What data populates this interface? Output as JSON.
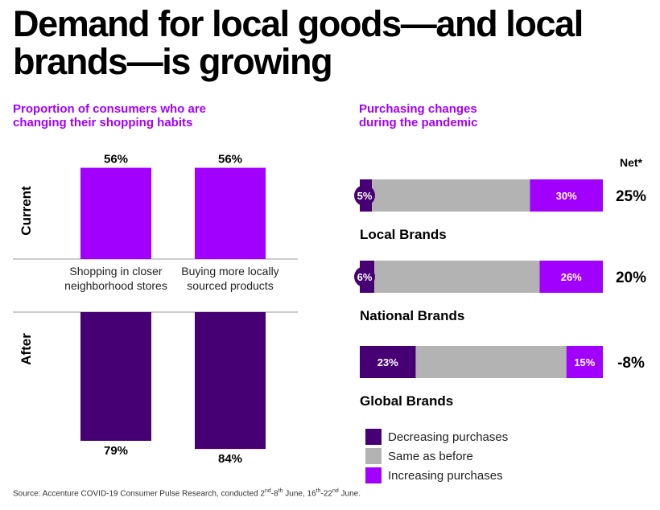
{
  "title": "Demand for local goods—and local\nbrands—is growing",
  "left_subtitle": "Proportion of consumers who are\nchanging their shopping habits",
  "right_subtitle": "Purchasing changes\nduring the pandemic",
  "colors": {
    "decreasing": "#460073",
    "same": "#b3b3b3",
    "increasing": "#a100ff",
    "current": "#a100ff",
    "after": "#460073"
  },
  "chart_data": [
    {
      "type": "bar",
      "title": "Proportion of consumers who are changing their shopping habits",
      "categories": [
        "Shopping in closer\nneighborhood stores",
        "Buying more locally\nsourced products"
      ],
      "series": [
        {
          "name": "Current",
          "values": [
            56,
            56
          ],
          "labels": [
            "56%",
            "56%"
          ]
        },
        {
          "name": "After",
          "values": [
            79,
            84
          ],
          "labels": [
            "79%",
            "84%"
          ]
        }
      ],
      "unit": "%"
    },
    {
      "type": "bar",
      "stacked": true,
      "orientation": "horizontal",
      "title": "Purchasing changes during the pandemic",
      "net_header": "Net*",
      "categories": [
        "Local Brands",
        "National Brands",
        "Global Brands"
      ],
      "series": [
        {
          "name": "Decreasing purchases",
          "values": [
            5,
            6,
            23
          ],
          "labels": [
            "5%",
            "6%",
            "23%"
          ]
        },
        {
          "name": "Same as before",
          "values": [
            65,
            68,
            62
          ]
        },
        {
          "name": "Increasing purchases",
          "values": [
            30,
            26,
            15
          ],
          "labels": [
            "30%",
            "26%",
            "15%"
          ]
        }
      ],
      "net": [
        "25%",
        "20%",
        "-8%"
      ],
      "unit": "%"
    }
  ],
  "legend": [
    "Decreasing purchases",
    "Same as before",
    "Increasing purchases"
  ],
  "source": "Source: Accenture COVID-19 Consumer Pulse Research, conducted 2nd-8th June, 16th-22nd June."
}
